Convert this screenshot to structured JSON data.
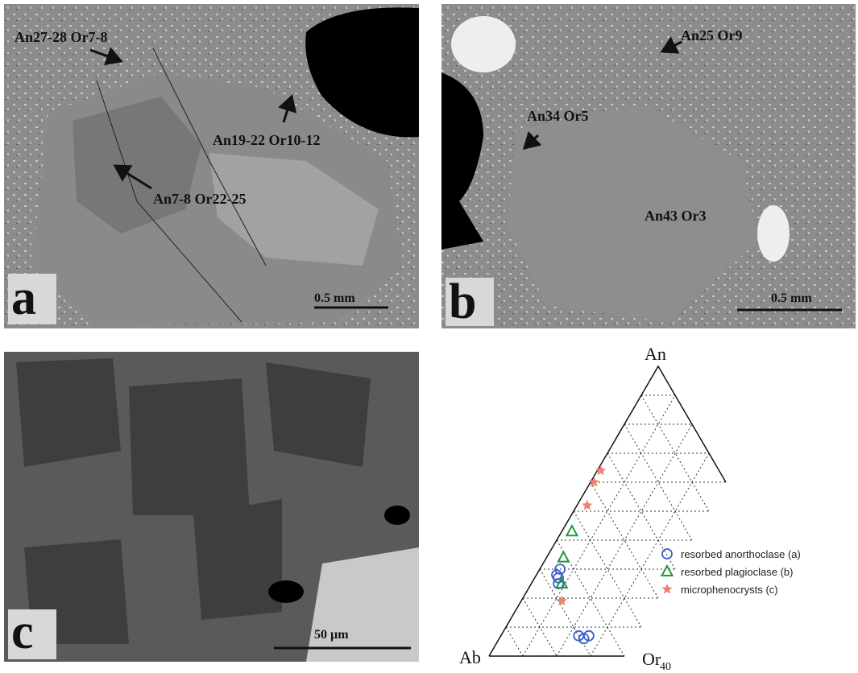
{
  "panels": [
    {
      "letter": "a",
      "scale_bar": "0.5 mm",
      "annotations": [
        "An27-28 Or7-8",
        "An19-22 Or10-12",
        "An7-8 Or22-25"
      ]
    },
    {
      "letter": "b",
      "scale_bar": "0.5 mm",
      "annotations": [
        "An25 Or9",
        "An34 Or5",
        "An43 Or3"
      ]
    },
    {
      "letter": "c",
      "scale_bar": "50 µm"
    }
  ],
  "ternary": {
    "apex": "An",
    "left": "Ab",
    "right": "Or",
    "right_subscript": 40,
    "grid_step": 10,
    "series": [
      {
        "name": "resorbed anorthoclase (a)",
        "color": "#3a5fcd",
        "marker": "circle",
        "An": [
          28,
          30,
          25,
          27,
          7,
          6,
          7
        ],
        "Or": [
          6,
          6,
          8,
          7,
          23,
          25,
          26
        ]
      },
      {
        "name": "resorbed plagioclase (b)",
        "color": "#1e9a3a",
        "marker": "triangle",
        "An": [
          43,
          34,
          25
        ],
        "Or": [
          3,
          5,
          9
        ]
      },
      {
        "name": "microphenocrysts (c)",
        "color": "#f08070",
        "marker": "star",
        "An": [
          64,
          60,
          52,
          19
        ],
        "Or": [
          1,
          1,
          3,
          12
        ]
      }
    ]
  }
}
